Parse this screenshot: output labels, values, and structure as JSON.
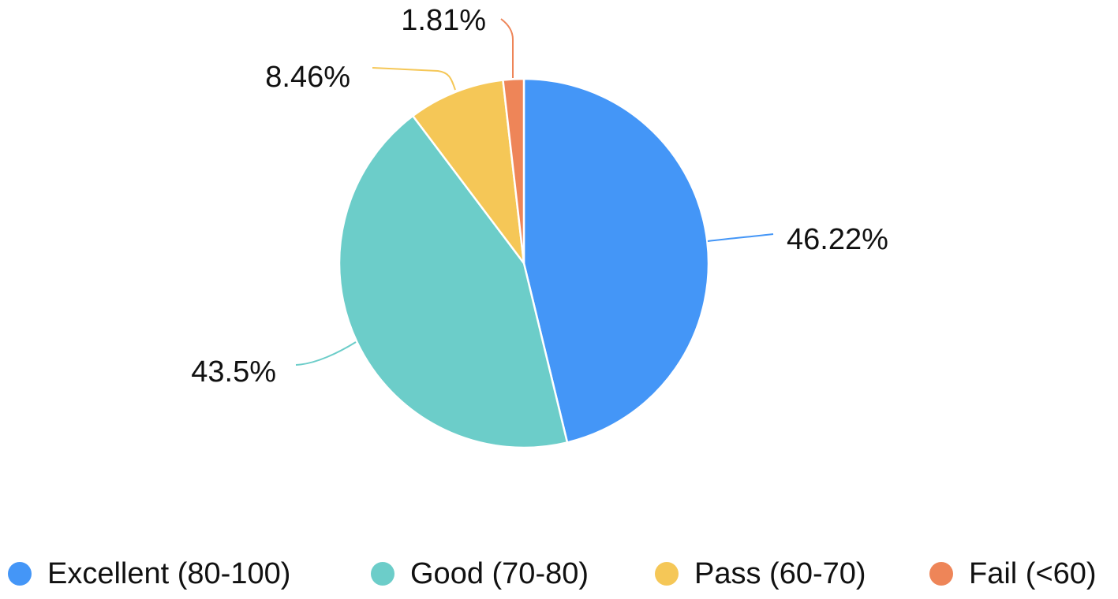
{
  "chart_data": {
    "type": "pie",
    "title": "",
    "slices": [
      {
        "label": "Excellent (80-100)",
        "value": 46.22,
        "display": "46.22%",
        "color": "#4496F7"
      },
      {
        "label": "Good (70-80)",
        "value": 43.5,
        "display": "43.5%",
        "color": "#6CCDC9"
      },
      {
        "label": "Pass (60-70)",
        "value": 8.46,
        "display": "8.46%",
        "color": "#F5C757"
      },
      {
        "label": "Fail (<60)",
        "value": 1.81,
        "display": "1.81%",
        "color": "#EE8558"
      }
    ],
    "start_angle": "top",
    "direction": "clockwise",
    "legend_position": "bottom"
  }
}
